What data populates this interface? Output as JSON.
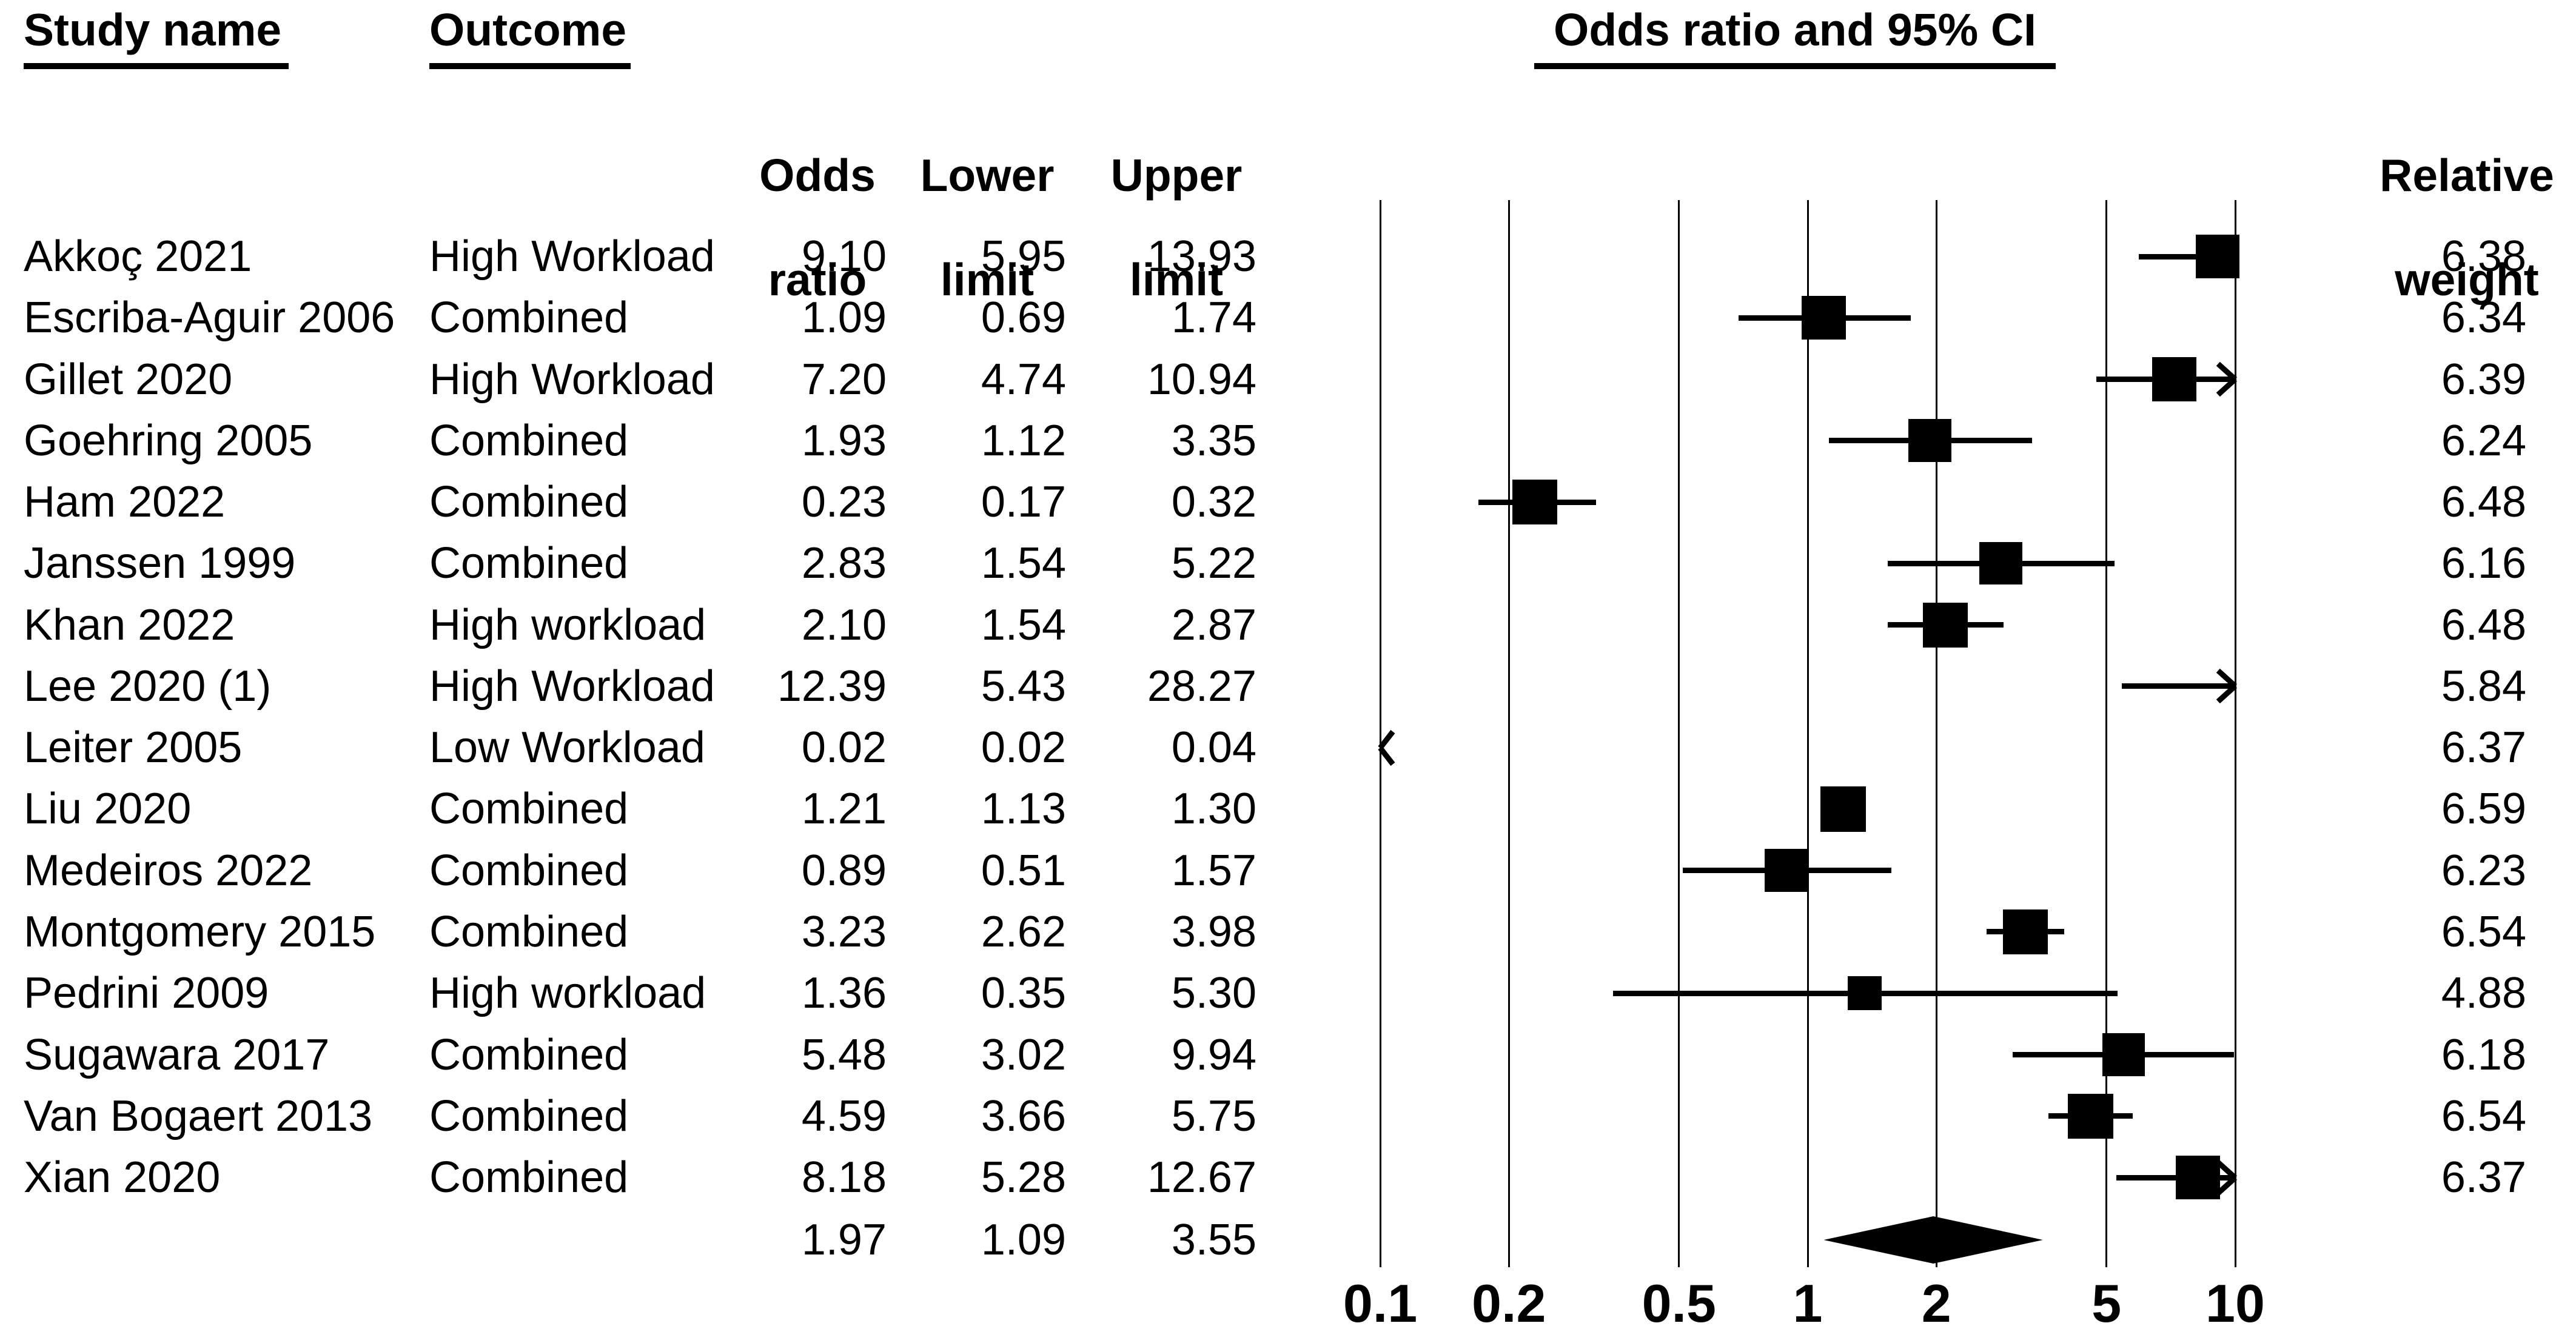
{
  "figure": {
    "plot_title": "Odds ratio and 95% CI",
    "columns": {
      "study": "Study name",
      "outcome": "Outcome",
      "or1": "Odds",
      "or2": "ratio",
      "lower1": "Lower",
      "lower2": "limit",
      "upper1": "Upper",
      "upper2": "limit",
      "weight1": "Relative",
      "weight2": "weight"
    }
  },
  "colors": {
    "ink": "#000000",
    "background": "#ffffff"
  },
  "chart_data": {
    "type": "forest",
    "x_scale": "log10",
    "xlim": [
      0.1,
      10
    ],
    "tick_labels": [
      "0.1",
      "0.2",
      "0.5",
      "1",
      "2",
      "5",
      "10"
    ],
    "tick_values": [
      0.1,
      0.2,
      0.5,
      1,
      2,
      5,
      10
    ],
    "grid": "vertical-lines-at-ticks",
    "legend_position": "none",
    "columns_shown": [
      "Study name",
      "Outcome",
      "Odds ratio",
      "Lower limit",
      "Upper limit",
      "Relative weight"
    ],
    "studies": [
      {
        "name": "Akkoç 2021",
        "outcome": "High Workload",
        "odds_ratio": 9.1,
        "lower": 5.95,
        "upper": 13.93,
        "weight": 6.38
      },
      {
        "name": "Escriba-Aguir 2006",
        "outcome": "Combined",
        "odds_ratio": 1.09,
        "lower": 0.69,
        "upper": 1.74,
        "weight": 6.34
      },
      {
        "name": "Gillet 2020",
        "outcome": "High Workload",
        "odds_ratio": 7.2,
        "lower": 4.74,
        "upper": 10.94,
        "weight": 6.39
      },
      {
        "name": "Goehring 2005",
        "outcome": "Combined",
        "odds_ratio": 1.93,
        "lower": 1.12,
        "upper": 3.35,
        "weight": 6.24
      },
      {
        "name": "Ham 2022",
        "outcome": "Combined",
        "odds_ratio": 0.23,
        "lower": 0.17,
        "upper": 0.32,
        "weight": 6.48
      },
      {
        "name": "Janssen 1999",
        "outcome": "Combined",
        "odds_ratio": 2.83,
        "lower": 1.54,
        "upper": 5.22,
        "weight": 6.16
      },
      {
        "name": "Khan 2022",
        "outcome": "High workload",
        "odds_ratio": 2.1,
        "lower": 1.54,
        "upper": 2.87,
        "weight": 6.48
      },
      {
        "name": "Lee 2020 (1)",
        "outcome": "High Workload",
        "odds_ratio": 12.39,
        "lower": 5.43,
        "upper": 28.27,
        "weight": 5.84
      },
      {
        "name": "Leiter 2005",
        "outcome": "Low Workload",
        "odds_ratio": 0.02,
        "lower": 0.02,
        "upper": 0.04,
        "weight": 6.37
      },
      {
        "name": "Liu 2020",
        "outcome": "Combined",
        "odds_ratio": 1.21,
        "lower": 1.13,
        "upper": 1.3,
        "weight": 6.59
      },
      {
        "name": "Medeiros 2022",
        "outcome": "Combined",
        "odds_ratio": 0.89,
        "lower": 0.51,
        "upper": 1.57,
        "weight": 6.23
      },
      {
        "name": "Montgomery 2015",
        "outcome": "Combined",
        "odds_ratio": 3.23,
        "lower": 2.62,
        "upper": 3.98,
        "weight": 6.54
      },
      {
        "name": "Pedrini 2009",
        "outcome": "High workload",
        "odds_ratio": 1.36,
        "lower": 0.35,
        "upper": 5.3,
        "weight": 4.88
      },
      {
        "name": "Sugawara 2017",
        "outcome": "Combined",
        "odds_ratio": 5.48,
        "lower": 3.02,
        "upper": 9.94,
        "weight": 6.18
      },
      {
        "name": "Van Bogaert 2013",
        "outcome": "Combined",
        "odds_ratio": 4.59,
        "lower": 3.66,
        "upper": 5.75,
        "weight": 6.54
      },
      {
        "name": "Xian 2020",
        "outcome": "Combined",
        "odds_ratio": 8.18,
        "lower": 5.28,
        "upper": 12.67,
        "weight": 6.37
      }
    ],
    "summary": {
      "odds_ratio": 1.97,
      "lower": 1.09,
      "upper": 3.55
    }
  }
}
